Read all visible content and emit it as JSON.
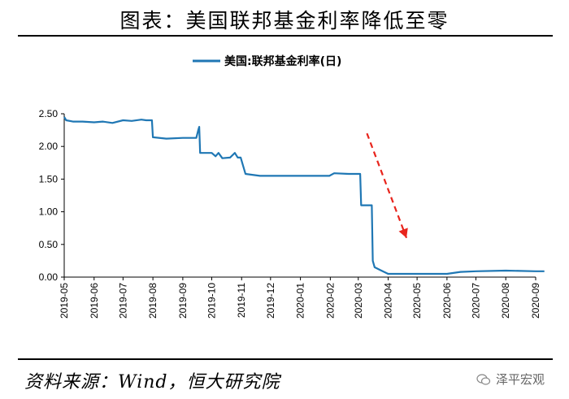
{
  "header": {
    "title": "图表：美国联邦基金利率降低至零"
  },
  "footer": {
    "source": "资料来源：Wind，恒大研究院",
    "watermark": "泽平宏观"
  },
  "colors": {
    "series": "#1f77b4",
    "arrow": "#e8241c",
    "axis": "#000000"
  },
  "chart_data": {
    "type": "line",
    "title": "",
    "xlabel": "",
    "ylabel": "",
    "ylim": [
      0,
      2.5
    ],
    "yticks": [
      "0.00",
      "0.50",
      "1.00",
      "1.50",
      "2.00",
      "2.50"
    ],
    "xticks": [
      "2019-05",
      "2019-06",
      "2019-07",
      "2019-08",
      "2019-09",
      "2019-10",
      "2019-11",
      "2019-12",
      "2020-01",
      "2020-02",
      "2020-03",
      "2020-04",
      "2020-05",
      "2020-06",
      "2020-07",
      "2020-08",
      "2020-09"
    ],
    "legend": {
      "position": "top-center"
    },
    "grid": false,
    "annotations": [
      {
        "type": "arrow",
        "description": "dashed red arrow pointing down",
        "from": [
          "2020-03-10",
          2.2
        ],
        "to": [
          "2020-04-20",
          0.6
        ]
      }
    ],
    "series": [
      {
        "name": "美国:联邦基金利率(日)",
        "x": [
          "2019-05-01",
          "2019-05-03",
          "2019-05-10",
          "2019-05-20",
          "2019-06-01",
          "2019-06-10",
          "2019-06-20",
          "2019-07-01",
          "2019-07-10",
          "2019-07-20",
          "2019-07-25",
          "2019-07-31",
          "2019-08-01",
          "2019-08-15",
          "2019-09-01",
          "2019-09-15",
          "2019-09-17",
          "2019-09-18",
          "2019-09-19",
          "2019-09-20",
          "2019-10-01",
          "2019-10-05",
          "2019-10-08",
          "2019-10-12",
          "2019-10-20",
          "2019-10-25",
          "2019-10-28",
          "2019-10-31",
          "2019-11-05",
          "2019-11-20",
          "2019-12-15",
          "2019-12-31",
          "2020-01-10",
          "2020-01-31",
          "2020-02-05",
          "2020-02-20",
          "2020-03-01",
          "2020-03-03",
          "2020-03-04",
          "2020-03-15",
          "2020-03-16",
          "2020-03-18",
          "2020-03-25",
          "2020-04-01",
          "2020-05-01",
          "2020-06-01",
          "2020-06-15",
          "2020-07-01",
          "2020-08-01",
          "2020-09-01",
          "2020-09-10"
        ],
        "y": [
          2.45,
          2.4,
          2.38,
          2.38,
          2.37,
          2.38,
          2.36,
          2.4,
          2.39,
          2.41,
          2.4,
          2.4,
          2.14,
          2.12,
          2.13,
          2.13,
          2.25,
          2.3,
          1.9,
          1.9,
          1.9,
          1.85,
          1.9,
          1.82,
          1.83,
          1.9,
          1.83,
          1.83,
          1.58,
          1.55,
          1.55,
          1.55,
          1.55,
          1.55,
          1.59,
          1.58,
          1.58,
          1.58,
          1.1,
          1.1,
          0.25,
          0.15,
          0.1,
          0.05,
          0.05,
          0.05,
          0.08,
          0.09,
          0.1,
          0.09,
          0.09
        ]
      }
    ]
  }
}
